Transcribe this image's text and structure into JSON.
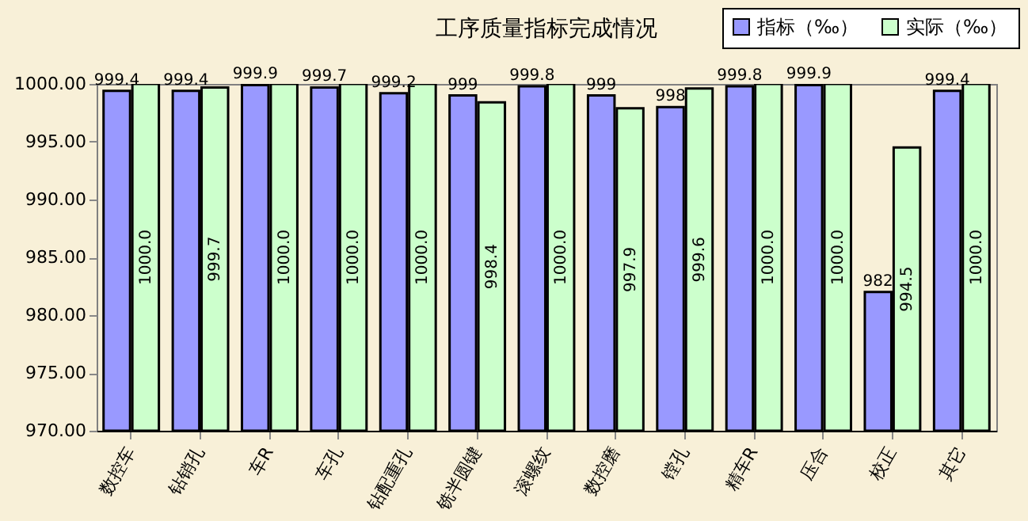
{
  "chart_data": {
    "type": "bar",
    "title": "工序质量指标完成情况",
    "categories": [
      "数控车",
      "钻销孔",
      "车R",
      "车孔",
      "钻配重孔",
      "铣半圆键",
      "滚螺纹",
      "数控磨",
      "镗孔",
      "精车R",
      "压合",
      "校正",
      "其它"
    ],
    "series": [
      {
        "name": "指标（‰）",
        "color": "#9999ff",
        "values": [
          999.4,
          999.4,
          999.9,
          999.7,
          999.2,
          999,
          999.8,
          999,
          998,
          999.8,
          999.9,
          982,
          999.4
        ],
        "value_labels": [
          "999.4",
          "999.4",
          "999.9",
          "999.7",
          "999.2",
          "999",
          "999.8",
          "999",
          "998",
          "999.8",
          "999.9",
          "982",
          "999.4"
        ]
      },
      {
        "name": "实际（‰）",
        "color": "#ccffcc",
        "values": [
          1000.0,
          999.7,
          1000.0,
          1000.0,
          1000.0,
          998.4,
          1000.0,
          997.9,
          999.6,
          1000.0,
          1000.0,
          994.5,
          1000.0
        ],
        "value_labels": [
          "1000.0",
          "999.7",
          "1000.0",
          "1000.0",
          "1000.0",
          "998.4",
          "1000.0",
          "997.9",
          "999.6",
          "1000.0",
          "1000.0",
          "994.5",
          "1000.0"
        ]
      }
    ],
    "ylim": [
      970,
      1000
    ],
    "yticks": [
      {
        "value": 970,
        "label": "970.00"
      },
      {
        "value": 975,
        "label": "975.00"
      },
      {
        "value": 980,
        "label": "980.00"
      },
      {
        "value": 985,
        "label": "985.00"
      },
      {
        "value": 990,
        "label": "990.00"
      },
      {
        "value": 995,
        "label": "995.00"
      },
      {
        "value": 1000,
        "label": "1000.00"
      }
    ],
    "grid": false,
    "legend": "top right"
  }
}
